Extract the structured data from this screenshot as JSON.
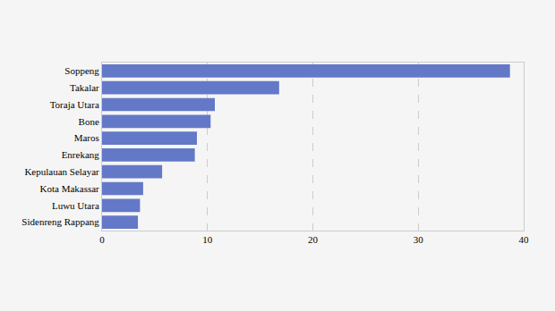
{
  "chart_data": {
    "type": "bar",
    "orientation": "horizontal",
    "categories": [
      "Soppeng",
      "Takalar",
      "Toraja Utara",
      "Bone",
      "Maros",
      "Enrekang",
      "Kepulauan Selayar",
      "Kota Makassar",
      "Luwu Utara",
      "Sidenreng Rappang"
    ],
    "values": [
      38.7,
      16.8,
      10.7,
      10.3,
      9.0,
      8.8,
      5.7,
      3.9,
      3.6,
      3.4
    ],
    "color": "#6478c8",
    "xlim": [
      0,
      40
    ],
    "xticks": [
      0,
      10,
      20,
      30,
      40
    ],
    "grid": true
  }
}
